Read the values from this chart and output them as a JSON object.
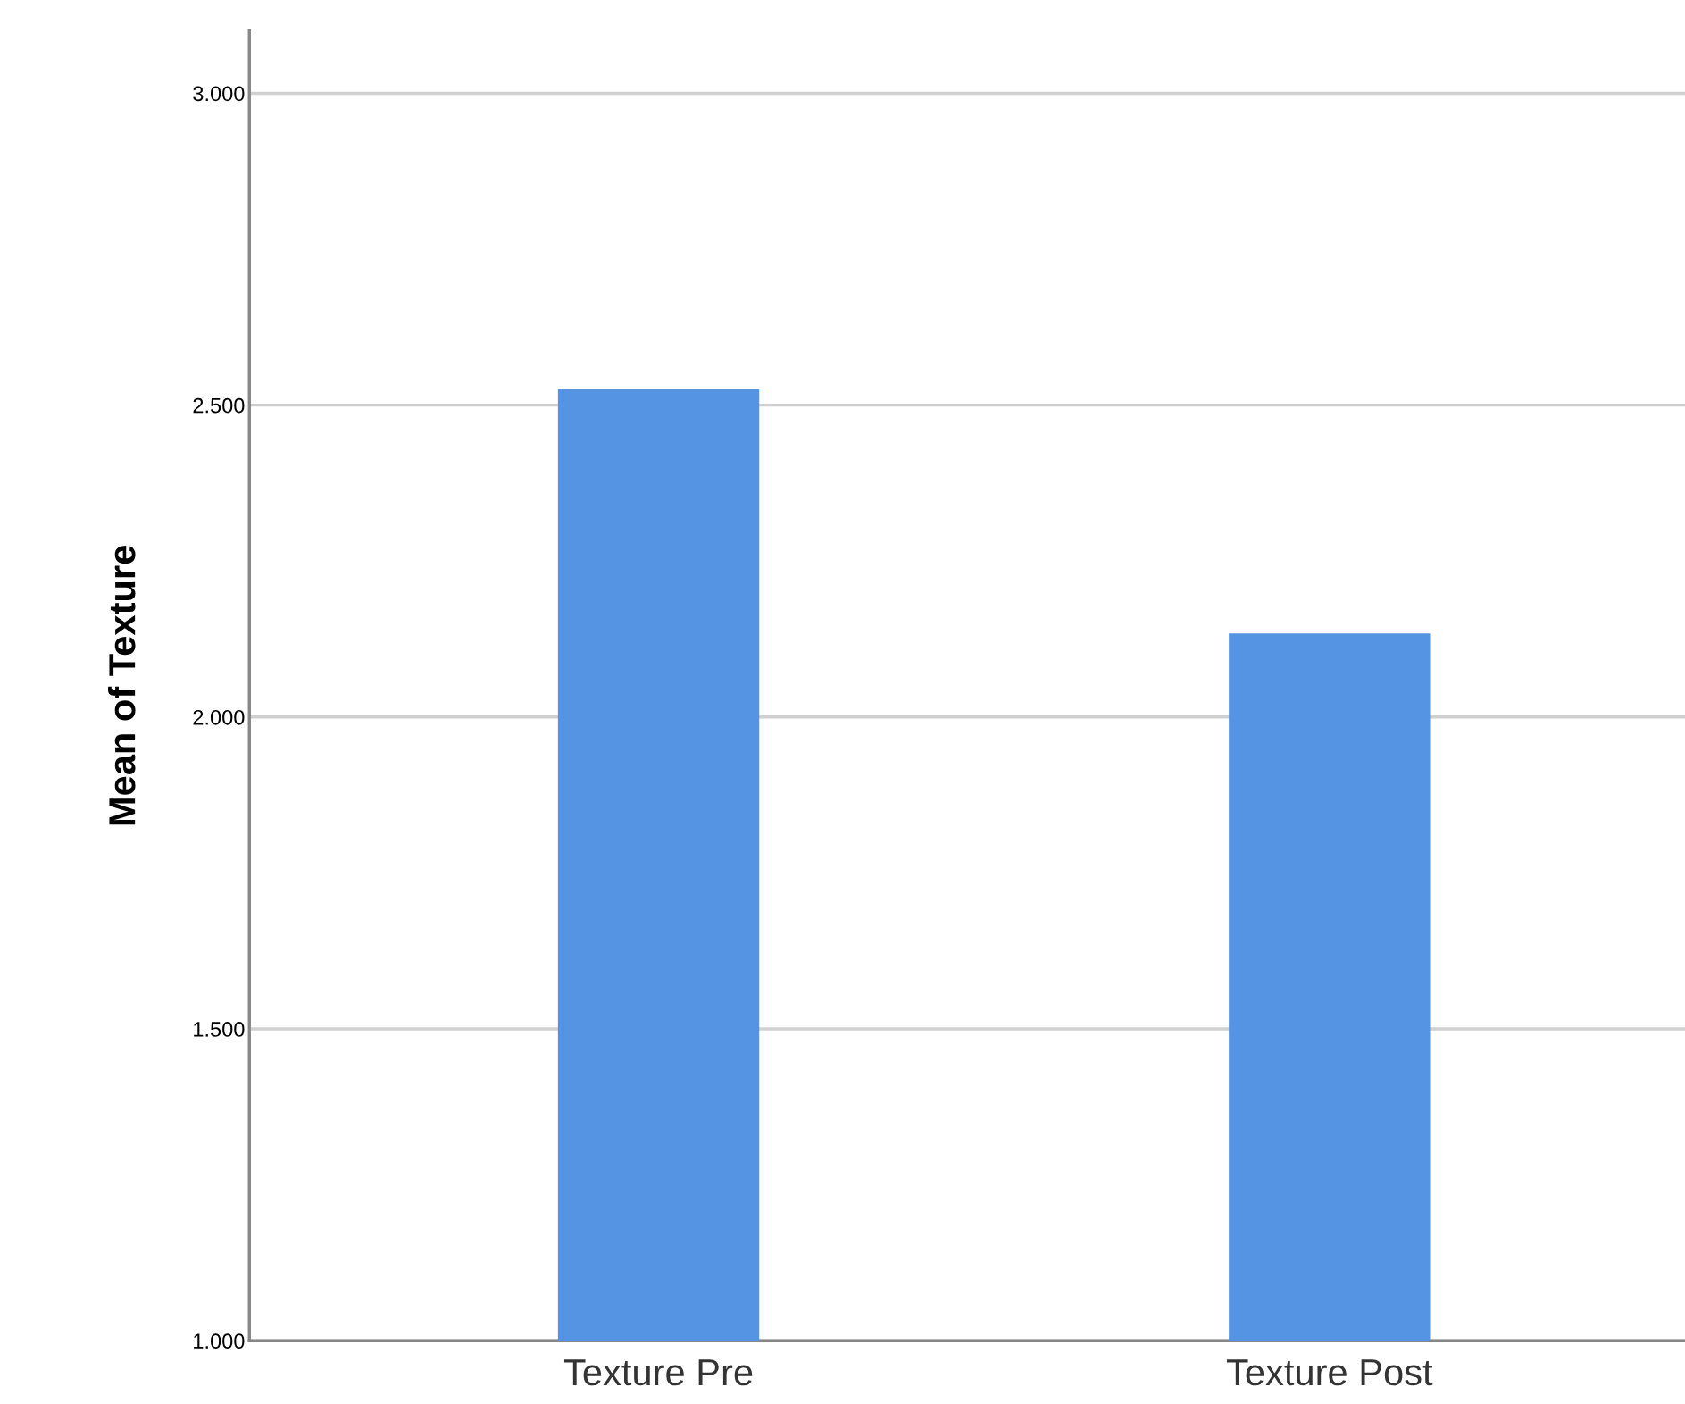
{
  "chart_data": {
    "type": "bar",
    "ylabel": "Mean of Texture",
    "categories": [
      "Texture Pre",
      "Texture Post"
    ],
    "values": [
      2.526,
      2.134
    ],
    "color": "#5593e3",
    "ylim": [
      1.0,
      3.1
    ],
    "yticks": [
      {
        "value": 1.0,
        "label": "1.000"
      },
      {
        "value": 1.5,
        "label": "1.500"
      },
      {
        "value": 2.0,
        "label": "2.000"
      },
      {
        "value": 2.5,
        "label": "2.500"
      },
      {
        "value": 3.0,
        "label": "3.000"
      }
    ],
    "grid": "y"
  }
}
